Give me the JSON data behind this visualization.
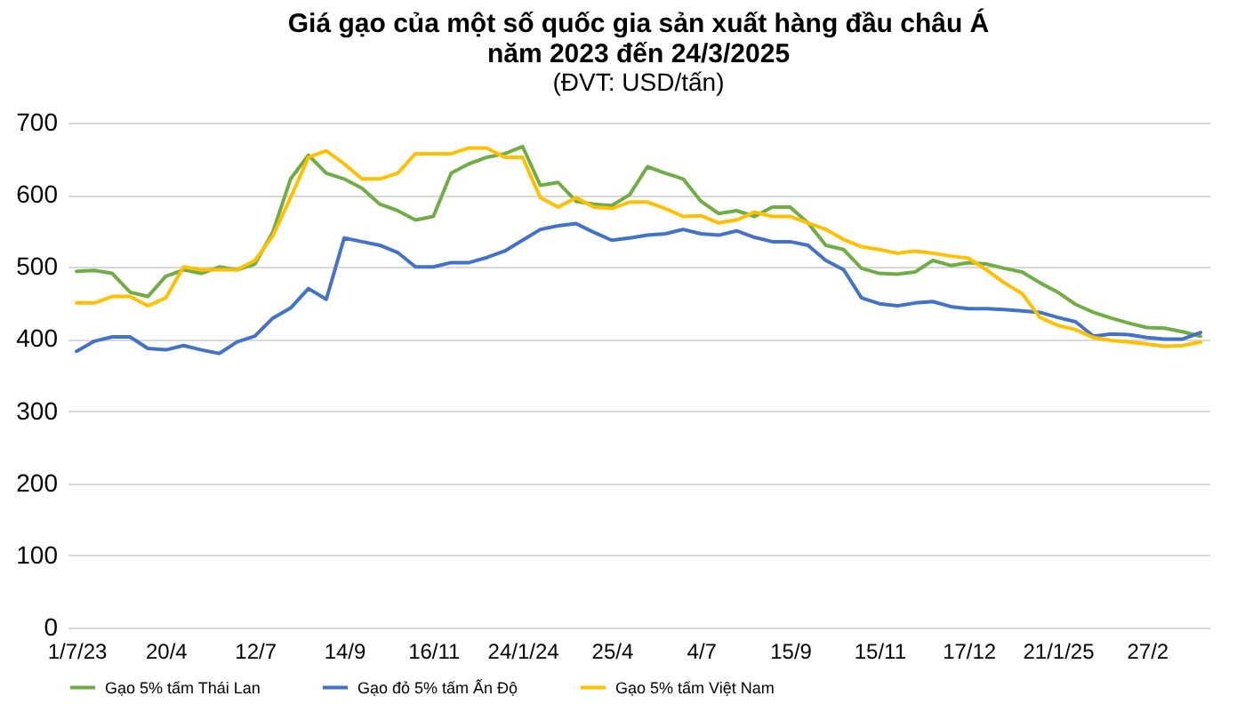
{
  "chart_data": {
    "type": "line",
    "title": "Giá gạo của một số quốc gia sản xuất hàng đầu châu Á\nnăm 2023 đến 24/3/2025",
    "subtitle": "(ĐVT: USD/tấn)",
    "categories": [
      "1/7/23",
      null,
      null,
      null,
      null,
      "20/4",
      null,
      null,
      null,
      null,
      "12/7",
      null,
      null,
      null,
      null,
      "14/9",
      null,
      null,
      null,
      null,
      "16/11",
      null,
      null,
      null,
      null,
      "24/1/24",
      null,
      null,
      null,
      null,
      "25/4",
      null,
      null,
      null,
      null,
      "4/7",
      null,
      null,
      null,
      null,
      "15/9",
      null,
      null,
      null,
      null,
      "15/11",
      null,
      null,
      null,
      null,
      "17/12",
      null,
      null,
      null,
      null,
      "21/1/25",
      null,
      null,
      null,
      null,
      "27/2",
      null,
      null,
      null
    ],
    "series": [
      {
        "name": "Gạo 5% tấm Thái Lan",
        "color": "#70ad47",
        "values": [
          494,
          495,
          491,
          465,
          459,
          487,
          496,
          491,
          500,
          496,
          504,
          548,
          622,
          655,
          630,
          622,
          609,
          587,
          578,
          565,
          570,
          630,
          643,
          652,
          657,
          667,
          613,
          617,
          591,
          587,
          585,
          600,
          639,
          630,
          622,
          591,
          574,
          578,
          570,
          583,
          583,
          561,
          530,
          524,
          498,
          491,
          490,
          493,
          509,
          502,
          506,
          504,
          498,
          493,
          478,
          465,
          448,
          437,
          429,
          422,
          416,
          415,
          410,
          404
        ]
      },
      {
        "name": "Gạo đỏ 5% tấm Ấn Độ",
        "color": "#4472c4",
        "values": [
          383,
          397,
          403,
          403,
          387,
          385,
          391,
          385,
          380,
          396,
          404,
          429,
          443,
          470,
          455,
          540,
          535,
          530,
          520,
          500,
          500,
          506,
          506,
          513,
          522,
          537,
          552,
          557,
          560,
          548,
          537,
          540,
          544,
          546,
          552,
          546,
          544,
          550,
          541,
          535,
          535,
          530,
          509,
          496,
          457,
          449,
          446,
          450,
          452,
          445,
          442,
          442,
          441,
          439,
          437,
          430,
          424,
          404,
          407,
          406,
          402,
          400,
          400,
          409
        ]
      },
      {
        "name": "Gạo 5% tấm Việt Nam",
        "color": "#ffc000",
        "values": [
          450,
          450,
          459,
          459,
          446,
          457,
          500,
          496,
          496,
          496,
          509,
          543,
          596,
          652,
          661,
          643,
          622,
          622,
          630,
          657,
          657,
          657,
          665,
          665,
          652,
          652,
          596,
          583,
          596,
          583,
          581,
          590,
          590,
          581,
          570,
          571,
          561,
          565,
          576,
          570,
          570,
          561,
          552,
          538,
          528,
          524,
          519,
          522,
          519,
          515,
          512,
          496,
          478,
          463,
          430,
          419,
          413,
          402,
          398,
          396,
          393,
          390,
          391,
          396
        ]
      }
    ],
    "ylim": [
      0,
      700
    ],
    "yticks": [
      0,
      100,
      200,
      300,
      400,
      500,
      600,
      700
    ],
    "grid": "y",
    "legend": "bottom",
    "marker": "none",
    "line_style": "solid"
  }
}
